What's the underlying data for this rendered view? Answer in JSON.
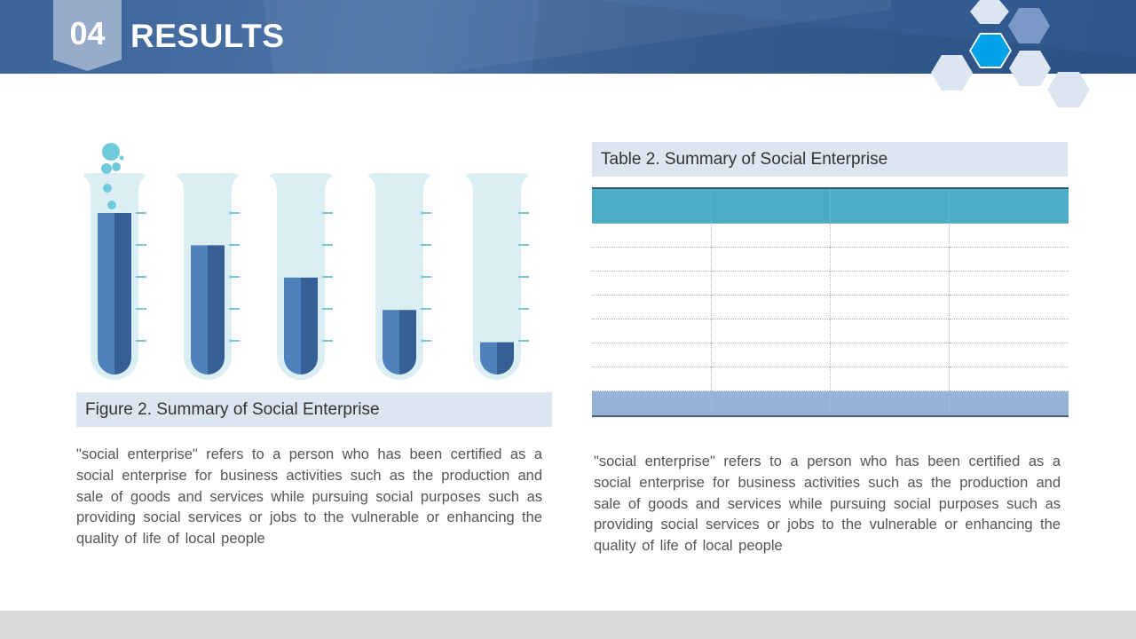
{
  "header": {
    "section_number": "04",
    "section_title": "RESULTS"
  },
  "figure": {
    "caption": "Figure 2. Summary of Social Enterprise",
    "description": "\"social enterprise\" refers to a person who has been certified as a social enterprise for business activities such as the production and sale of goods and services while pursuing social purposes such as providing social services or jobs to the vulnerable or enhancing the quality of life of local people"
  },
  "table": {
    "caption": "Table 2. Summary of Social Enterprise",
    "column_count": 4,
    "header_cells": [
      "",
      "",
      "",
      ""
    ],
    "rows": [
      [
        "",
        "",
        "",
        ""
      ],
      [
        "",
        "",
        "",
        ""
      ],
      [
        "",
        "",
        "",
        ""
      ],
      [
        "",
        "",
        "",
        ""
      ],
      [
        "",
        "",
        "",
        ""
      ],
      [
        "",
        "",
        "",
        ""
      ],
      [
        "",
        "",
        "",
        ""
      ]
    ],
    "total_row": [
      "",
      "",
      "",
      ""
    ],
    "description": "\"social enterprise\" refers to a person who has been certified as a social enterprise for business activities such as the production and sale of goods and services while pursuing social purposes such as providing social services or jobs to the vulnerable or enhancing the quality of life of local people"
  },
  "chart_data": {
    "type": "bar",
    "style": "test-tubes",
    "categories": [
      "",
      "",
      "",
      "",
      ""
    ],
    "values": [
      100,
      80,
      60,
      40,
      20
    ],
    "ylim": [
      0,
      100
    ],
    "tick_marks": 5,
    "title": "",
    "xlabel": "",
    "ylabel": ""
  },
  "colors": {
    "header_blue": "#3d6499",
    "liquid_light": "#4f81bd",
    "liquid_dark": "#365f96",
    "tube_glass": "#daeef3",
    "tick_teal": "#7cc6d4",
    "table_header": "#4bacc6",
    "table_total": "#95b3d7",
    "caption_bg": "#dce6f1",
    "hex_accent": "#00a2e8",
    "footer_gray": "#d9d9d9"
  }
}
